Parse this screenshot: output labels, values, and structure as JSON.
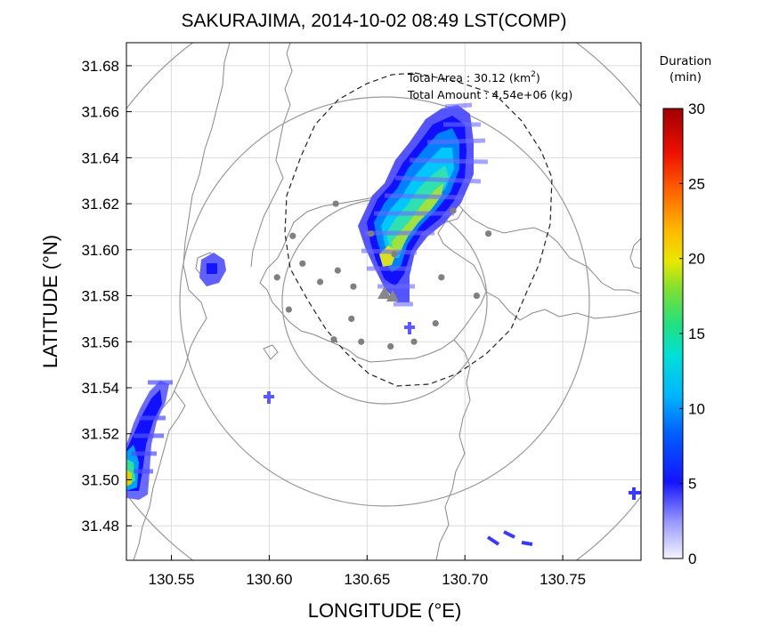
{
  "title": "SAKURAJIMA, 2014-10-02 08:49 LST(COMP)",
  "xlabel": "LONGITUDE (°E)",
  "ylabel": "LATITUDE (°N)",
  "annotation": {
    "area_label": "Total Area   : 30.12 (km",
    "area_sup": "2",
    "area_close": ")",
    "amount_label": "Total Amount : 4.54e+06 (kg)"
  },
  "colorbar": {
    "title_line1": "Duration",
    "title_line2": "(min)",
    "ticks": [
      "0",
      "5",
      "10",
      "15",
      "20",
      "25",
      "30"
    ],
    "colors": [
      "#f4f4ff",
      "#b8b8ff",
      "#6a6aff",
      "#1414ff",
      "#0066ff",
      "#00b2ff",
      "#00e0e0",
      "#10e0a0",
      "#40e060",
      "#90e030",
      "#e0e000",
      "#ffc000",
      "#ff8000",
      "#ff3000",
      "#e00000",
      "#a00000"
    ]
  },
  "chart_data": {
    "type": "map",
    "xlim": [
      130.527,
      130.79
    ],
    "ylim": [
      31.465,
      31.69
    ],
    "x_ticks": [
      "130.55",
      "130.60",
      "130.65",
      "130.70",
      "130.75"
    ],
    "y_ticks": [
      "31.48",
      "31.50",
      "31.52",
      "31.54",
      "31.56",
      "31.58",
      "31.60",
      "31.62",
      "31.64",
      "31.66",
      "31.68"
    ],
    "grid": true,
    "vent": {
      "lon": 130.661,
      "lat": 31.581
    },
    "range_circles_lon_radius": [
      0.051,
      0.105,
      0.165
    ],
    "stations": [
      {
        "lon": 130.634,
        "lat": 31.62
      },
      {
        "lon": 130.612,
        "lat": 31.606
      },
      {
        "lon": 130.604,
        "lat": 31.588
      },
      {
        "lon": 130.617,
        "lat": 31.594
      },
      {
        "lon": 130.626,
        "lat": 31.586
      },
      {
        "lon": 130.635,
        "lat": 31.591
      },
      {
        "lon": 130.643,
        "lat": 31.584
      },
      {
        "lon": 130.642,
        "lat": 31.57
      },
      {
        "lon": 130.61,
        "lat": 31.574
      },
      {
        "lon": 130.633,
        "lat": 31.561
      },
      {
        "lon": 130.647,
        "lat": 31.56
      },
      {
        "lon": 130.662,
        "lat": 31.558
      },
      {
        "lon": 130.674,
        "lat": 31.56
      },
      {
        "lon": 130.685,
        "lat": 31.568
      },
      {
        "lon": 130.688,
        "lat": 31.588
      },
      {
        "lon": 130.706,
        "lat": 31.58
      },
      {
        "lon": 130.712,
        "lat": 31.607
      },
      {
        "lon": 130.694,
        "lat": 31.617
      },
      {
        "lon": 130.652,
        "lat": 31.607
      },
      {
        "lon": 130.664,
        "lat": 31.598
      }
    ],
    "ash_fall_plumes": [
      {
        "name": "main",
        "duration_min_max": 15
      },
      {
        "name": "west-coast",
        "duration_min_max": 20
      },
      {
        "name": "scattered-west",
        "duration_min_max": 5
      },
      {
        "name": "scattered-southeast",
        "duration_min_max": 5
      }
    ],
    "colorbar_range": [
      0,
      30
    ]
  }
}
